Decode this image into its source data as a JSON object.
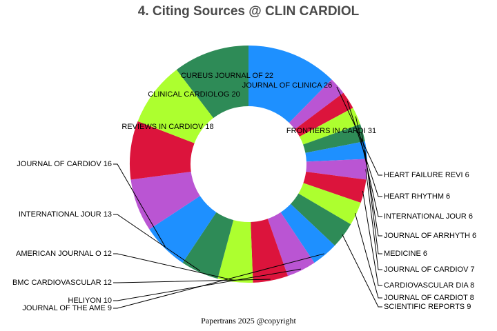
{
  "chart_data": {
    "type": "pie",
    "title": "4. Citing Sources @ CLIN CARDIOL",
    "donut": true,
    "slices": [
      {
        "label": "FRONTIERS IN CARDI",
        "value": 31,
        "color": "#1e90ff"
      },
      {
        "label": "HEART FAILURE REVI",
        "value": 6,
        "color": "#ba55d3"
      },
      {
        "label": "HEART RHYTHM",
        "value": 6,
        "color": "#dc143c"
      },
      {
        "label": "INTERNATIONAL JOUR",
        "value": 6,
        "color": "#adff2f"
      },
      {
        "label": "JOURNAL OF ARRHYTH",
        "value": 6,
        "color": "#2e8b57"
      },
      {
        "label": "MEDICINE",
        "value": 6,
        "color": "#1e90ff"
      },
      {
        "label": "JOURNAL OF CARDIOV",
        "value": 7,
        "color": "#ba55d3"
      },
      {
        "label": "CARDIOVASCULAR DIA",
        "value": 8,
        "color": "#dc143c"
      },
      {
        "label": "JOURNAL OF CARDIOT",
        "value": 8,
        "color": "#adff2f"
      },
      {
        "label": "SCIENTIFIC REPORTS",
        "value": 9,
        "color": "#2e8b57"
      },
      {
        "label": "JOURNAL OF THE AME",
        "value": 9,
        "color": "#1e90ff"
      },
      {
        "label": "HELIYON",
        "value": 10,
        "color": "#ba55d3"
      },
      {
        "label": "BMC CARDIOVASCULAR",
        "value": 12,
        "color": "#dc143c"
      },
      {
        "label": "AMERICAN JOURNAL O",
        "value": 12,
        "color": "#adff2f"
      },
      {
        "label": "INTERNATIONAL JOUR",
        "value": 13,
        "color": "#2e8b57"
      },
      {
        "label": "JOURNAL OF CARDIOV",
        "value": 16,
        "color": "#1e90ff"
      },
      {
        "label": "REVIEWS IN CARDIOV",
        "value": 18,
        "color": "#ba55d3"
      },
      {
        "label": "CLINICAL CARDIOLOG",
        "value": 20,
        "color": "#dc143c"
      },
      {
        "label": "CUREUS JOURNAL OF",
        "value": 22,
        "color": "#adff2f"
      },
      {
        "label": "JOURNAL OF CLINICA",
        "value": 26,
        "color": "#2e8b57"
      }
    ]
  },
  "footer": {
    "copyright": "Papertrans 2025 @copyright"
  }
}
